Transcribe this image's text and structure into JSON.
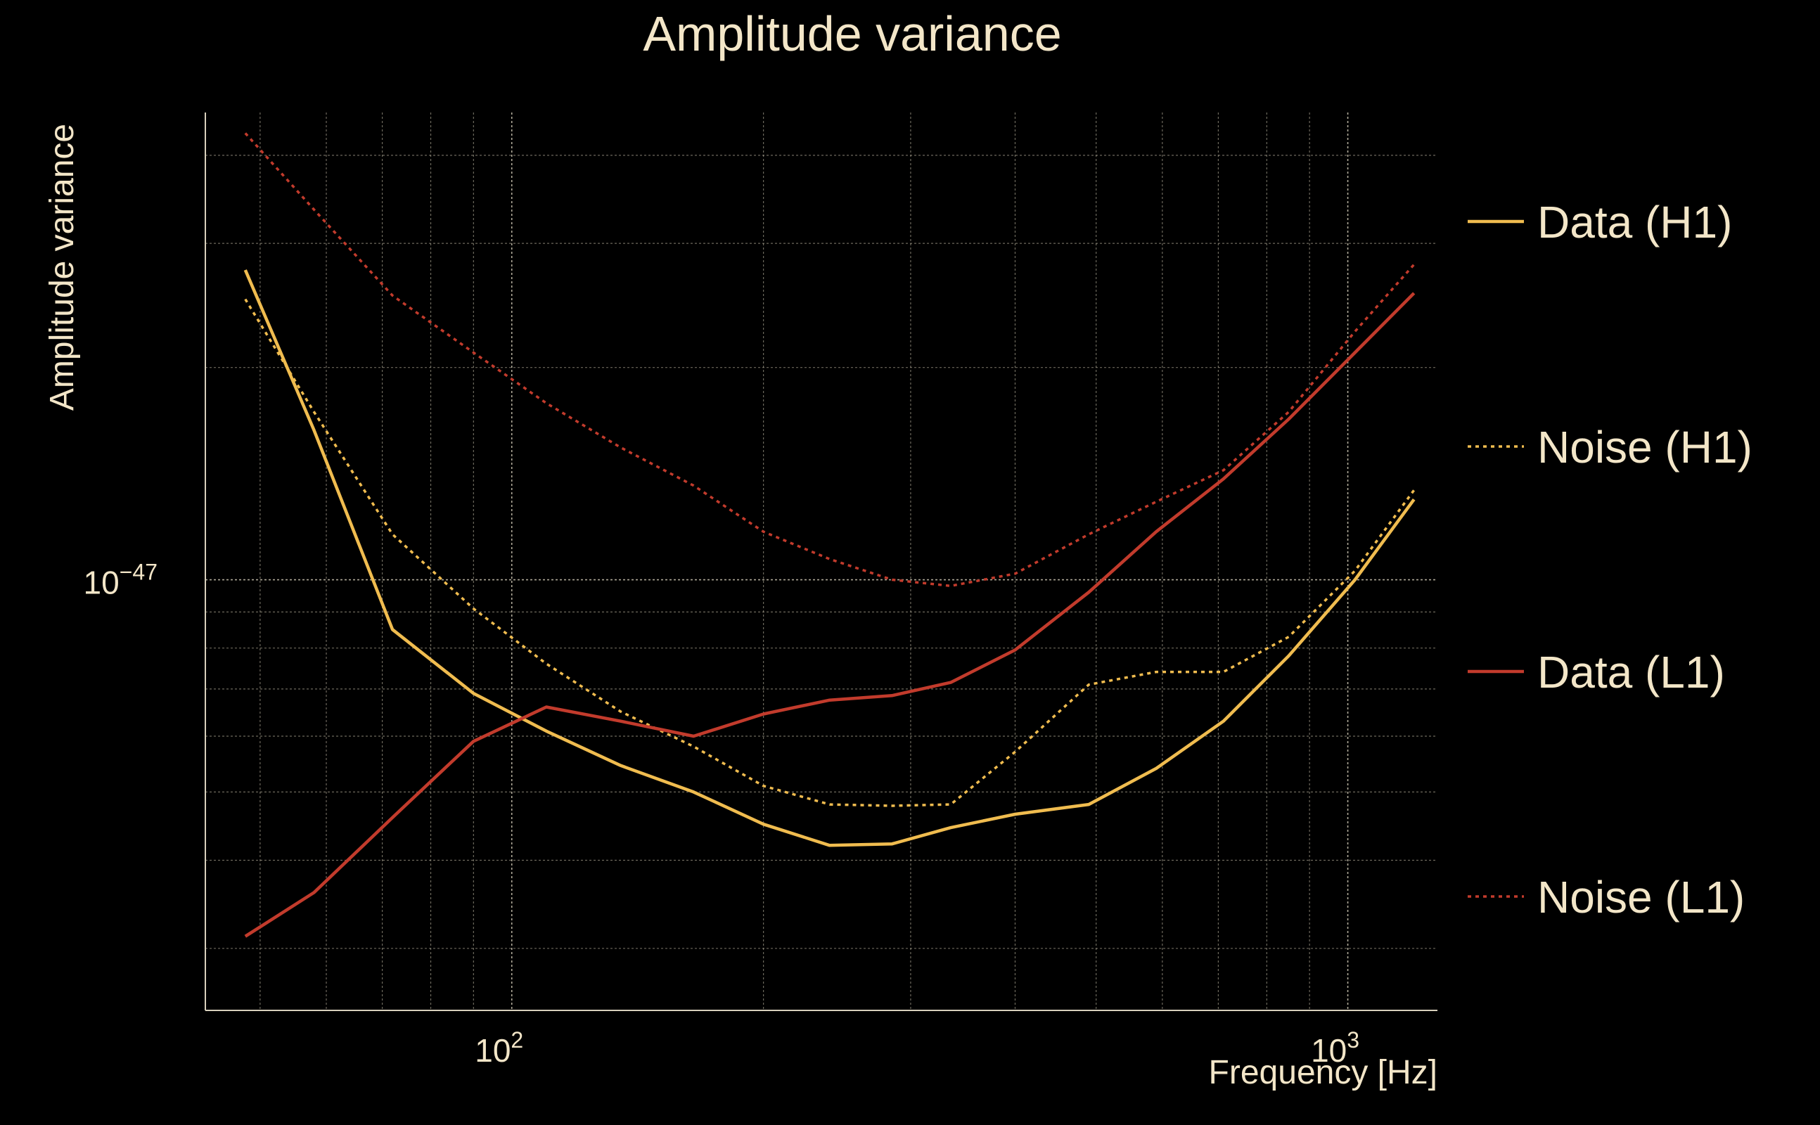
{
  "chart_data": {
    "type": "line",
    "title": "Amplitude variance",
    "xlabel": "Frequency [Hz]",
    "ylabel": "Amplitude variance",
    "xscale": "log",
    "yscale": "log",
    "xlim": [
      43,
      1280
    ],
    "ylim": [
      2.45e-48,
      4.6e-47
    ],
    "grid": true,
    "legend_position": "right",
    "x_ticks": [
      {
        "value": 100,
        "base": "10",
        "exp": "2"
      },
      {
        "value": 1000,
        "base": "10",
        "exp": "3"
      }
    ],
    "y_ticks": [
      {
        "value": 1e-47,
        "base": "10",
        "exp": "−47"
      }
    ],
    "x": [
      48,
      58,
      72,
      90,
      110,
      135,
      165,
      200,
      240,
      285,
      335,
      400,
      490,
      590,
      710,
      850,
      1020,
      1200
    ],
    "series": [
      {
        "name": "Data (H1)",
        "color": "#f0bc4f",
        "dash": "solid",
        "values": [
          2.75e-47,
          1.63e-47,
          8.5e-48,
          6.9e-48,
          6.1e-48,
          5.45e-48,
          5e-48,
          4.5e-48,
          4.2e-48,
          4.22e-48,
          4.45e-48,
          4.65e-48,
          4.8e-48,
          5.4e-48,
          6.3e-48,
          7.8e-48,
          1e-47,
          1.3e-47
        ]
      },
      {
        "name": "Noise (H1)",
        "color": "#f0bc4f",
        "dash": "dotted",
        "values": [
          2.5e-47,
          1.73e-47,
          1.16e-47,
          9.1e-48,
          7.6e-48,
          6.5e-48,
          5.8e-48,
          5.1e-48,
          4.8e-48,
          4.78e-48,
          4.8e-48,
          5.7e-48,
          7.1e-48,
          7.4e-48,
          7.4e-48,
          8.3e-48,
          1.03e-47,
          1.34e-47
        ]
      },
      {
        "name": "Data (L1)",
        "color": "#c23b2c",
        "dash": "solid",
        "values": [
          3.12e-48,
          3.6e-48,
          4.6e-48,
          5.9e-48,
          6.6e-48,
          6.3e-48,
          6e-48,
          6.45e-48,
          6.75e-48,
          6.85e-48,
          7.15e-48,
          7.95e-48,
          9.6e-48,
          1.17e-47,
          1.39e-47,
          1.69e-47,
          2.1e-47,
          2.55e-47
        ]
      },
      {
        "name": "Noise (L1)",
        "color": "#c23b2c",
        "dash": "dotted",
        "values": [
          4.3e-47,
          3.35e-47,
          2.53e-47,
          2.1e-47,
          1.78e-47,
          1.54e-47,
          1.36e-47,
          1.17e-47,
          1.07e-47,
          1e-47,
          9.8e-48,
          1.02e-47,
          1.16e-47,
          1.29e-47,
          1.43e-47,
          1.73e-47,
          2.25e-47,
          2.8e-47
        ]
      }
    ]
  }
}
